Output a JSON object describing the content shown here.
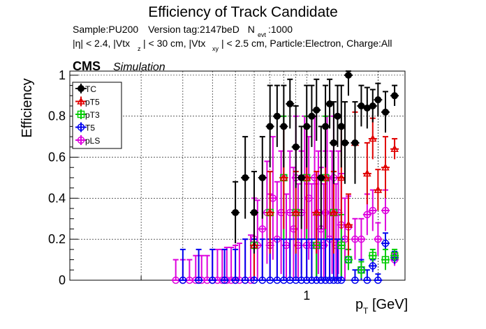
{
  "chart_data": {
    "type": "scatter",
    "title": "Efficiency of Track Candidate",
    "info": {
      "sample": "Sample:PU200",
      "version": "Version tag:2147beD",
      "nevt_n": "N",
      "nevt_sub": "evt",
      "nevt_val": ":1000",
      "cuts_1": "|η| < 2.4, |Vtx",
      "cuts_1_sub": "z",
      "cuts_2": "| < 30 cm, |Vtx",
      "cuts_2_sub": "xy",
      "cuts_3": "| < 2.5 cm, Particle:Electron, Charge:All"
    },
    "cms_label": "CMS",
    "sim_label": "Simulation",
    "ylabel": "Efficiency",
    "xlabel_main": "p",
    "xlabel_sub": "T",
    "xlabel_unit": "[GeV]",
    "x_scale": "log",
    "xlim": [
      0.1,
      2.6
    ],
    "ylim": [
      0,
      1.02
    ],
    "x_ticks": [
      {
        "value": 1,
        "label": "1"
      }
    ],
    "y_ticks": [
      {
        "value": 0,
        "label": "0"
      },
      {
        "value": 0.2,
        "label": "0.2"
      },
      {
        "value": 0.4,
        "label": "0.4"
      },
      {
        "value": 0.6,
        "label": "0.6"
      },
      {
        "value": 0.8,
        "label": "0.8"
      },
      {
        "value": 1,
        "label": "1"
      }
    ],
    "grid": true,
    "legend_position": "top-left",
    "series": [
      {
        "name": "TC",
        "color": "#000000",
        "marker": "filled-circle",
        "x": [
          0.5,
          0.55,
          0.6,
          0.65,
          0.7,
          0.75,
          0.8,
          0.85,
          0.9,
          0.95,
          1.0,
          1.05,
          1.1,
          1.15,
          1.2,
          1.25,
          1.3,
          1.35,
          1.4,
          1.45,
          1.5,
          1.6,
          1.7,
          1.8,
          1.9,
          2.0,
          2.15,
          2.35
        ],
        "y": [
          0.33,
          0.5,
          0.33,
          0.5,
          0.75,
          0.8,
          0.75,
          0.86,
          0.65,
          0.5,
          0.75,
          0.8,
          0.83,
          0.5,
          0.75,
          0.86,
          0.67,
          0.8,
          0.75,
          0.67,
          1.0,
          0.67,
          0.85,
          0.84,
          0.85,
          0.88,
          0.82,
          0.9
        ],
        "err": [
          0.15,
          0.2,
          0.2,
          0.2,
          0.2,
          0.15,
          0.2,
          0.12,
          0.2,
          0.25,
          0.2,
          0.15,
          0.15,
          0.25,
          0.2,
          0.12,
          0.2,
          0.15,
          0.2,
          0.2,
          0.1,
          0.2,
          0.1,
          0.1,
          0.08,
          0.08,
          0.1,
          0.05
        ]
      },
      {
        "name": "pT5",
        "color": "#e00000",
        "marker": "open-triangle",
        "x": [
          0.6,
          0.7,
          0.8,
          0.9,
          1.0,
          1.1,
          1.2,
          1.3,
          1.4,
          1.5,
          1.6,
          1.8,
          1.9,
          2.0,
          2.15,
          2.35
        ],
        "y": [
          0.17,
          0.33,
          0.5,
          0.33,
          0.5,
          0.33,
          0.5,
          0.33,
          0.5,
          0.27,
          0.67,
          0.52,
          0.69,
          0.44,
          0.55,
          0.64
        ],
        "err": [
          0.15,
          0.2,
          0.25,
          0.2,
          0.25,
          0.2,
          0.25,
          0.2,
          0.25,
          0.15,
          0.15,
          0.15,
          0.1,
          0.1,
          0.15,
          0.05
        ]
      },
      {
        "name": "pT3",
        "color": "#00cc00",
        "marker": "open-square",
        "x": [
          0.6,
          0.7,
          0.8,
          0.9,
          1.0,
          1.1,
          1.2,
          1.3,
          1.4,
          1.5,
          1.7,
          1.9,
          2.15,
          2.35
        ],
        "y": [
          0.17,
          0.33,
          0.5,
          0.33,
          0.5,
          0.17,
          0.5,
          0.33,
          0.17,
          0.1,
          0.05,
          0.12,
          0.1,
          0.12
        ],
        "err": [
          0.15,
          0.2,
          0.3,
          0.2,
          0.3,
          0.15,
          0.3,
          0.2,
          0.15,
          0.05,
          0.04,
          0.03,
          0.05,
          0.03
        ]
      },
      {
        "name": "T5",
        "color": "#0000ee",
        "marker": "open-circle",
        "x": [
          0.3,
          0.35,
          0.4,
          0.45,
          0.5,
          0.55,
          0.6,
          0.65,
          0.7,
          0.75,
          0.8,
          0.85,
          0.9,
          0.95,
          1.0,
          1.05,
          1.1,
          1.15,
          1.2,
          1.25,
          1.3,
          1.35,
          1.4,
          1.5,
          1.6,
          1.7,
          1.8,
          1.9,
          2.0,
          2.15,
          2.35
        ],
        "y": [
          0,
          0,
          0,
          0,
          0,
          0,
          0,
          0,
          0,
          0,
          0,
          0,
          0,
          0,
          0,
          0,
          0,
          0,
          0,
          0,
          0,
          0,
          0,
          0.1,
          0,
          0.05,
          0,
          0.07,
          0,
          0.18,
          0.11
        ],
        "err": [
          0.15,
          0.15,
          0.15,
          0.15,
          0.15,
          0.2,
          0.2,
          0.2,
          0.2,
          0.2,
          0.2,
          0.2,
          0.2,
          0.2,
          0.2,
          0.2,
          0.2,
          0.2,
          0.2,
          0.2,
          0.2,
          0.2,
          0.2,
          0.05,
          0.05,
          0.05,
          0.05,
          0.03,
          0.03,
          0.05,
          0.03
        ]
      },
      {
        "name": "pLS",
        "color": "#dd00dd",
        "marker": "open-circle",
        "x": [
          0.28,
          0.3,
          0.32,
          0.34,
          0.36,
          0.38,
          0.4,
          0.42,
          0.44,
          0.46,
          0.48,
          0.5,
          0.52,
          0.55,
          0.58,
          0.6,
          0.62,
          0.65,
          0.68,
          0.7,
          0.72,
          0.75,
          0.78,
          0.8,
          0.82,
          0.85,
          0.88,
          0.9,
          0.92,
          0.95,
          0.98,
          1.0,
          1.02,
          1.05,
          1.08,
          1.1,
          1.12,
          1.15,
          1.18,
          1.2,
          1.22,
          1.25,
          1.28,
          1.3,
          1.33,
          1.36,
          1.4,
          1.45,
          1.5,
          1.6,
          1.7,
          1.8,
          1.9,
          2.0,
          2.15,
          2.35
        ],
        "y": [
          0,
          0,
          0,
          0,
          0,
          0,
          0,
          0,
          0,
          0,
          0,
          0,
          0,
          0,
          0,
          0.2,
          0.17,
          0.25,
          0.33,
          0.17,
          0.4,
          0.2,
          0.33,
          0.5,
          0.17,
          0.33,
          0.25,
          0.5,
          0.17,
          0.33,
          0.5,
          0.17,
          0.4,
          0.17,
          0.5,
          0.17,
          0.33,
          0.25,
          0.17,
          0.33,
          0.5,
          0.2,
          0.33,
          0.5,
          0.17,
          0.33,
          0.27,
          0.2,
          0.26,
          0.2,
          0.2,
          0.32,
          0.34,
          0.2,
          0.34,
          0.1
        ],
        "err": [
          0.1,
          0.1,
          0.1,
          0.12,
          0.12,
          0.12,
          0.15,
          0.15,
          0.15,
          0.16,
          0.16,
          0.17,
          0.18,
          0.2,
          0.22,
          0.2,
          0.22,
          0.25,
          0.25,
          0.25,
          0.3,
          0.28,
          0.3,
          0.3,
          0.25,
          0.3,
          0.3,
          0.3,
          0.3,
          0.3,
          0.3,
          0.3,
          0.3,
          0.3,
          0.3,
          0.3,
          0.3,
          0.3,
          0.3,
          0.3,
          0.3,
          0.3,
          0.3,
          0.3,
          0.3,
          0.3,
          0.25,
          0.2,
          0.15,
          0.1,
          0.1,
          0.1,
          0.1,
          0.08,
          0.1,
          0.03
        ]
      }
    ]
  }
}
